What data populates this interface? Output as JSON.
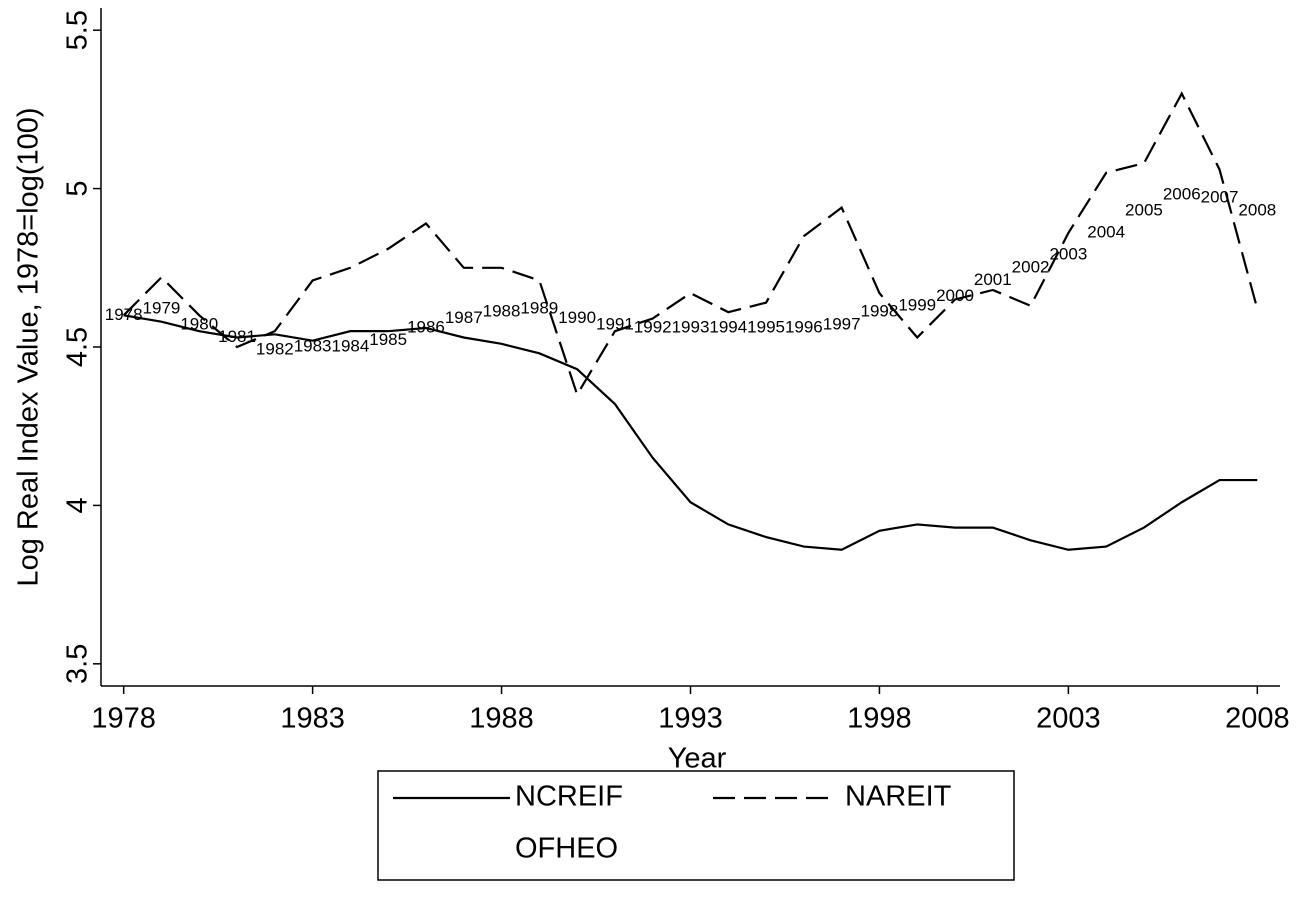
{
  "chart_data": {
    "type": "line",
    "x_label": "Year",
    "y_label": "Log Real Index Value, 1978=log(100)",
    "x": [
      1978,
      1979,
      1980,
      1981,
      1982,
      1983,
      1984,
      1985,
      1986,
      1987,
      1988,
      1989,
      1990,
      1991,
      1992,
      1993,
      1994,
      1995,
      1996,
      1997,
      1998,
      1999,
      2000,
      2001,
      2002,
      2003,
      2004,
      2005,
      2006,
      2007,
      2008
    ],
    "series": [
      {
        "name": "NCREIF",
        "color": "#000000",
        "line_style": "solid",
        "values": [
          4.6,
          4.58,
          4.55,
          4.53,
          4.54,
          4.52,
          4.55,
          4.55,
          4.56,
          4.53,
          4.51,
          4.48,
          4.43,
          4.32,
          4.15,
          4.01,
          3.94,
          3.9,
          3.87,
          3.86,
          3.92,
          3.94,
          3.93,
          3.93,
          3.89,
          3.86,
          3.87,
          3.93,
          4.01,
          4.08,
          4.08
        ]
      },
      {
        "name": "NAREIT",
        "color": "#000000",
        "line_style": "dashed",
        "values": [
          4.6,
          4.72,
          4.6,
          4.5,
          4.55,
          4.71,
          4.75,
          4.81,
          4.89,
          4.75,
          4.75,
          4.71,
          4.35,
          4.55,
          4.59,
          4.67,
          4.61,
          4.64,
          4.85,
          4.94,
          4.67,
          4.53,
          4.65,
          4.68,
          4.63,
          4.86,
          5.05,
          5.08,
          5.3,
          5.06,
          4.62
        ]
      },
      {
        "name": "OFHEO",
        "color": "#000000",
        "line_style": "x-labels",
        "values": [
          4.6,
          4.62,
          4.57,
          4.53,
          4.49,
          4.5,
          4.5,
          4.52,
          4.56,
          4.59,
          4.61,
          4.62,
          4.59,
          4.57,
          4.56,
          4.56,
          4.56,
          4.56,
          4.56,
          4.57,
          4.61,
          4.63,
          4.66,
          4.71,
          4.75,
          4.79,
          4.86,
          4.93,
          4.98,
          4.97,
          4.93
        ]
      }
    ],
    "xlim": [
      1977.4,
      2008.6
    ],
    "xticks": [
      1978,
      1983,
      1988,
      1993,
      1998,
      2003,
      2008
    ],
    "ylim": [
      3.43,
      5.57
    ],
    "yticks": [
      3.5,
      4,
      4.5,
      5,
      5.5
    ],
    "grid": false,
    "legend_position": "bottom"
  }
}
